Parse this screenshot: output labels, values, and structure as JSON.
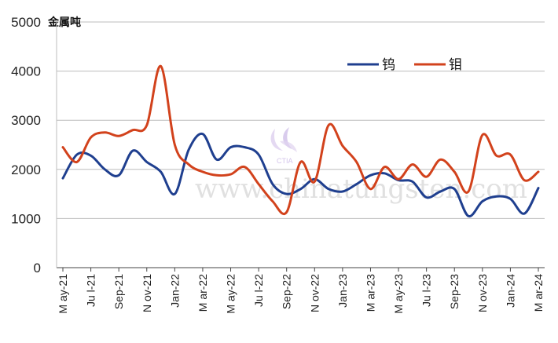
{
  "chart_data": {
    "type": "line",
    "ylabel": "金属吨",
    "ylim": [
      0,
      5000
    ],
    "yticks": [
      0,
      1000,
      2000,
      3000,
      4000,
      5000
    ],
    "grid": true,
    "legend_position": "top-right",
    "x_tick_labels": [
      "M ay-21",
      "Ju l-21",
      "Sep-21",
      "N ov-21",
      "Jan-22",
      "M ar-22",
      "M ay-22",
      "Ju l-22",
      "Sep-22",
      "N ov-22",
      "Jan-23",
      "M ar-23",
      "M ay-23",
      "Ju l-23",
      "Sep-23",
      "N ov-23",
      "Jan-24",
      "M ar-24"
    ],
    "x": [
      "2021-05",
      "2021-06",
      "2021-07",
      "2021-08",
      "2021-09",
      "2021-10",
      "2021-11",
      "2021-12",
      "2022-01",
      "2022-02",
      "2022-03",
      "2022-04",
      "2022-05",
      "2022-06",
      "2022-07",
      "2022-08",
      "2022-09",
      "2022-10",
      "2022-11",
      "2022-12",
      "2023-01",
      "2023-02",
      "2023-03",
      "2023-04",
      "2023-05",
      "2023-06",
      "2023-07",
      "2023-08",
      "2023-09",
      "2023-10",
      "2023-11",
      "2023-12",
      "2024-01",
      "2024-02",
      "2024-03"
    ],
    "series": [
      {
        "name": "钨",
        "color": "#1f3f8f",
        "values": [
          1820,
          2300,
          2280,
          2000,
          1880,
          2380,
          2150,
          1950,
          1500,
          2400,
          2720,
          2200,
          2450,
          2450,
          2300,
          1700,
          1500,
          1600,
          1800,
          1600,
          1550,
          1700,
          1880,
          1920,
          1780,
          1750,
          1430,
          1550,
          1600,
          1050,
          1350,
          1450,
          1400,
          1100,
          1620
        ]
      },
      {
        "name": "钼",
        "color": "#d2421c",
        "values": [
          2450,
          2150,
          2650,
          2750,
          2680,
          2800,
          2900,
          4100,
          2500,
          2100,
          1950,
          1880,
          1900,
          2050,
          1700,
          1350,
          1130,
          2150,
          1750,
          2900,
          2480,
          2150,
          1600,
          2050,
          1800,
          2100,
          1850,
          2200,
          1950,
          1550,
          2700,
          2280,
          2300,
          1780,
          1950
        ]
      }
    ],
    "watermark": "www.chinatungsten.com",
    "logo_text": "CTIA"
  }
}
